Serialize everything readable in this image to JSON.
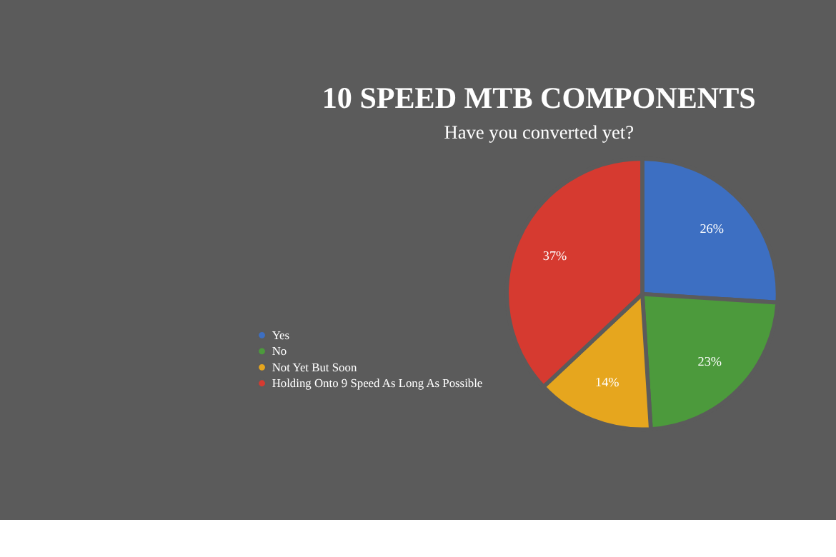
{
  "chart_data": {
    "type": "pie",
    "title": "10 SPEED MTB COMPONENTS",
    "subtitle": "Have you converted yet?",
    "categories": [
      "Yes",
      "No",
      "Not Yet But Soon",
      "Holding Onto 9 Speed As Long As Possible"
    ],
    "values": [
      26,
      23,
      14,
      37
    ],
    "colors": [
      "#3d6fc2",
      "#4c9a3c",
      "#e6a61e",
      "#d63a30"
    ],
    "value_labels": [
      "26%",
      "23%",
      "14%",
      "37%"
    ],
    "legend": "bottom left"
  }
}
